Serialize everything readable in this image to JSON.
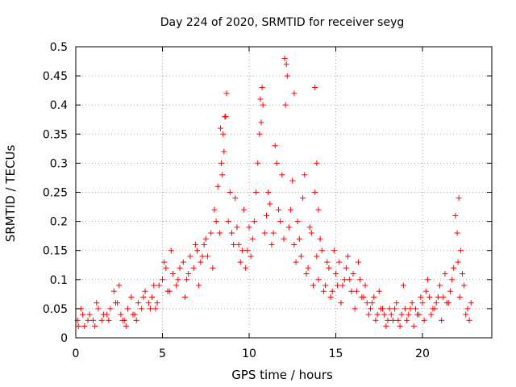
{
  "chart_data": {
    "type": "scatter",
    "title": "Day 224 of 2020, SRMTID for receiver seyg",
    "xlabel": "GPS time / hours",
    "ylabel": "SRMTID / TECUs",
    "xlim": [
      0,
      24
    ],
    "ylim": [
      0,
      0.5
    ],
    "x_ticks": [
      "0",
      "5",
      "10",
      "15",
      "20"
    ],
    "y_ticks": [
      "0",
      "0.05",
      "0.1",
      "0.15",
      "0.2",
      "0.25",
      "0.3",
      "0.35",
      "0.4",
      "0.45",
      "0.5"
    ],
    "grid": true,
    "marker": "+",
    "color": "#ff0000",
    "series": [
      {
        "name": "SRMTID",
        "x": [
          0.1,
          0.3,
          0.5,
          0.8,
          1.0,
          1.2,
          1.5,
          1.8,
          2.0,
          2.2,
          2.4,
          2.6,
          2.8,
          3.0,
          3.2,
          3.4,
          3.6,
          3.8,
          4.0,
          4.2,
          4.4,
          4.6,
          4.8,
          5.0,
          5.2,
          5.4,
          5.6,
          5.8,
          6.0,
          6.2,
          6.4,
          6.6,
          6.8,
          7.0,
          7.2,
          7.4,
          7.6,
          7.8,
          8.0,
          8.2,
          8.4,
          8.5,
          8.6,
          8.8,
          9.0,
          9.2,
          9.4,
          9.6,
          9.8,
          10.0,
          10.2,
          10.4,
          10.6,
          10.8,
          11.0,
          11.2,
          11.4,
          11.6,
          11.8,
          12.0,
          12.2,
          12.4,
          12.6,
          12.8,
          13.0,
          13.2,
          13.4,
          13.6,
          13.8,
          14.0,
          14.2,
          14.4,
          14.6,
          14.8,
          15.0,
          15.2,
          15.4,
          15.6,
          15.8,
          16.0,
          16.2,
          16.4,
          16.6,
          16.8,
          17.0,
          17.2,
          17.4,
          17.6,
          17.8,
          18.0,
          18.2,
          18.4,
          18.6,
          18.8,
          19.0,
          19.2,
          19.4,
          19.6,
          19.8,
          20.0,
          20.2,
          20.4,
          20.6,
          20.8,
          21.0,
          21.2,
          21.4,
          21.6,
          21.8,
          22.0,
          22.1,
          22.2,
          22.4,
          22.6,
          22.8
        ],
        "y": [
          0.03,
          0.05,
          0.02,
          0.04,
          0.03,
          0.06,
          0.03,
          0.04,
          0.05,
          0.08,
          0.06,
          0.04,
          0.03,
          0.05,
          0.07,
          0.04,
          0.06,
          0.05,
          0.08,
          0.06,
          0.07,
          0.05,
          0.09,
          0.1,
          0.12,
          0.08,
          0.11,
          0.09,
          0.12,
          0.13,
          0.1,
          0.14,
          0.12,
          0.15,
          0.13,
          0.16,
          0.14,
          0.18,
          0.22,
          0.26,
          0.3,
          0.35,
          0.38,
          0.2,
          0.18,
          0.24,
          0.16,
          0.15,
          0.12,
          0.19,
          0.17,
          0.25,
          0.35,
          0.4,
          0.21,
          0.23,
          0.18,
          0.3,
          0.2,
          0.17,
          0.45,
          0.22,
          0.16,
          0.2,
          0.14,
          0.28,
          0.12,
          0.18,
          0.25,
          0.1,
          0.15,
          0.09,
          0.12,
          0.08,
          0.11,
          0.13,
          0.09,
          0.12,
          0.1,
          0.11,
          0.08,
          0.1,
          0.07,
          0.06,
          0.05,
          0.07,
          0.04,
          0.05,
          0.04,
          0.03,
          0.04,
          0.05,
          0.03,
          0.04,
          0.05,
          0.04,
          0.06,
          0.05,
          0.04,
          0.06,
          0.08,
          0.07,
          0.05,
          0.06,
          0.09,
          0.07,
          0.06,
          0.08,
          0.12,
          0.18,
          0.24,
          0.15,
          0.09,
          0.05,
          0.06
        ]
      }
    ],
    "extra_points": {
      "x": [
        0.15,
        0.4,
        0.7,
        1.1,
        1.3,
        1.6,
        1.9,
        2.3,
        2.5,
        2.7,
        2.9,
        3.3,
        3.5,
        3.9,
        4.3,
        4.5,
        4.7,
        5.1,
        5.3,
        5.5,
        5.9,
        6.3,
        6.5,
        6.9,
        7.1,
        7.3,
        7.5,
        7.9,
        8.1,
        8.3,
        8.45,
        8.55,
        8.7,
        8.9,
        9.1,
        9.3,
        9.5,
        9.7,
        9.9,
        10.1,
        10.3,
        10.5,
        10.7,
        10.9,
        11.1,
        11.3,
        11.5,
        11.7,
        11.9,
        12.1,
        12.3,
        12.5,
        12.7,
        12.9,
        13.1,
        13.3,
        13.5,
        13.7,
        13.9,
        14.1,
        14.3,
        14.5,
        14.7,
        14.9,
        15.1,
        15.3,
        15.5,
        15.7,
        15.9,
        16.1,
        16.3,
        16.5,
        16.7,
        16.9,
        17.1,
        17.3,
        17.5,
        17.7,
        17.9,
        18.1,
        18.3,
        18.5,
        18.7,
        18.9,
        19.1,
        19.3,
        19.5,
        19.7,
        19.9,
        20.1,
        20.3,
        20.5,
        20.7,
        20.9,
        21.1,
        21.3,
        21.5,
        21.7,
        21.9,
        22.05,
        22.15,
        22.3,
        22.5,
        22.7,
        8.35,
        8.65,
        10.65,
        10.75,
        12.05,
        12.15,
        12.6,
        13.8,
        13.9,
        14.0
      ],
      "y": [
        0.02,
        0.04,
        0.03,
        0.02,
        0.05,
        0.04,
        0.03,
        0.06,
        0.09,
        0.03,
        0.02,
        0.04,
        0.03,
        0.07,
        0.05,
        0.09,
        0.06,
        0.13,
        0.08,
        0.15,
        0.1,
        0.07,
        0.11,
        0.16,
        0.09,
        0.14,
        0.17,
        0.12,
        0.2,
        0.18,
        0.28,
        0.32,
        0.42,
        0.25,
        0.16,
        0.19,
        0.13,
        0.22,
        0.15,
        0.14,
        0.2,
        0.3,
        0.37,
        0.18,
        0.25,
        0.16,
        0.33,
        0.22,
        0.28,
        0.4,
        0.19,
        0.27,
        0.13,
        0.17,
        0.24,
        0.11,
        0.19,
        0.09,
        0.14,
        0.17,
        0.08,
        0.13,
        0.07,
        0.15,
        0.09,
        0.06,
        0.1,
        0.14,
        0.08,
        0.05,
        0.13,
        0.07,
        0.09,
        0.04,
        0.06,
        0.03,
        0.08,
        0.05,
        0.02,
        0.05,
        0.03,
        0.06,
        0.02,
        0.09,
        0.03,
        0.05,
        0.02,
        0.04,
        0.07,
        0.03,
        0.1,
        0.04,
        0.05,
        0.07,
        0.03,
        0.11,
        0.06,
        0.1,
        0.21,
        0.13,
        0.07,
        0.11,
        0.04,
        0.03,
        0.36,
        0.38,
        0.41,
        0.43,
        0.48,
        0.47,
        0.42,
        0.43,
        0.3,
        0.22
      ]
    }
  }
}
